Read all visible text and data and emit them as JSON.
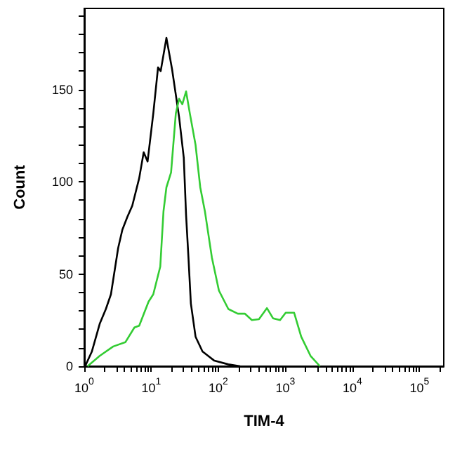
{
  "chart_data": {
    "type": "line",
    "xlabel": "TIM-4",
    "ylabel": "Count",
    "log": "x",
    "grid": false,
    "marker": "none",
    "line_style": "solid",
    "xlim": [
      1,
      230000
    ],
    "ylim": [
      0,
      194
    ],
    "xticks": [
      {
        "value": 1,
        "label": "10$^{0}$"
      },
      {
        "value": 2,
        "label": null
      },
      {
        "value": 3,
        "label": null
      },
      {
        "value": 4,
        "label": null
      },
      {
        "value": 5,
        "label": null
      },
      {
        "value": 6,
        "label": null
      },
      {
        "value": 7,
        "label": null
      },
      {
        "value": 8,
        "label": null
      },
      {
        "value": 9,
        "label": null
      },
      {
        "value": 10,
        "label": "10$^{1}$"
      },
      {
        "value": 20,
        "label": null
      },
      {
        "value": 30,
        "label": null
      },
      {
        "value": 40,
        "label": null
      },
      {
        "value": 50,
        "label": null
      },
      {
        "value": 60,
        "label": null
      },
      {
        "value": 70,
        "label": null
      },
      {
        "value": 80,
        "label": null
      },
      {
        "value": 90,
        "label": null
      },
      {
        "value": 100,
        "label": "10$^{2}$"
      },
      {
        "value": 200,
        "label": null
      },
      {
        "value": 300,
        "label": null
      },
      {
        "value": 400,
        "label": null
      },
      {
        "value": 500,
        "label": null
      },
      {
        "value": 600,
        "label": null
      },
      {
        "value": 700,
        "label": null
      },
      {
        "value": 800,
        "label": null
      },
      {
        "value": 900,
        "label": null
      },
      {
        "value": 1000,
        "label": "10$^{3}$"
      },
      {
        "value": 2000,
        "label": null
      },
      {
        "value": 3000,
        "label": null
      },
      {
        "value": 4000,
        "label": null
      },
      {
        "value": 5000,
        "label": null
      },
      {
        "value": 6000,
        "label": null
      },
      {
        "value": 7000,
        "label": null
      },
      {
        "value": 8000,
        "label": null
      },
      {
        "value": 9000,
        "label": null
      },
      {
        "value": 10000,
        "label": "10$^{4}$"
      },
      {
        "value": 20000,
        "label": null
      },
      {
        "value": 30000,
        "label": null
      },
      {
        "value": 40000,
        "label": null
      },
      {
        "value": 50000,
        "label": null
      },
      {
        "value": 60000,
        "label": null
      },
      {
        "value": 70000,
        "label": null
      },
      {
        "value": 80000,
        "label": null
      },
      {
        "value": 90000,
        "label": null
      },
      {
        "value": 100000,
        "label": "10$^{5}$"
      },
      {
        "value": 200000,
        "label": null
      }
    ],
    "yticks": [
      0,
      {
        "value": 10,
        "label": null
      },
      {
        "value": 20,
        "label": null
      },
      {
        "value": 30,
        "label": null
      },
      {
        "value": 40,
        "label": null
      },
      50,
      {
        "value": 60,
        "label": null
      },
      {
        "value": 70,
        "label": null
      },
      {
        "value": 80,
        "label": null
      },
      {
        "value": 90,
        "label": null
      },
      100,
      {
        "value": 110,
        "label": null
      },
      {
        "value": 120,
        "label": null
      },
      {
        "value": 130,
        "label": null
      },
      {
        "value": 140,
        "label": null
      },
      150,
      {
        "value": 160,
        "label": null
      },
      {
        "value": 170,
        "label": null
      },
      {
        "value": 180,
        "label": null
      },
      {
        "value": 190,
        "label": null
      }
    ],
    "series": [
      {
        "color": "#000000",
        "x": [
          1.03,
          1.3,
          1.7,
          2.1,
          2.5,
          3.2,
          3.7,
          4.4,
          5.2,
          6.6,
          7.7,
          8.8,
          10.7,
          12.6,
          13.8,
          16.8,
          20.4,
          26,
          30.5,
          33,
          35.8,
          38.9,
          45.7,
          58,
          87,
          141,
          211
        ],
        "values": [
          0,
          8,
          23,
          31,
          39,
          64,
          74,
          81,
          87,
          102,
          116,
          111,
          137,
          162,
          160,
          178,
          161,
          135,
          113,
          82,
          59,
          34,
          16,
          8,
          3,
          1,
          0
        ]
      },
      {
        "color": "#33cc33",
        "x": [
          1.12,
          1.7,
          2.7,
          4.1,
          5.6,
          6.6,
          9.1,
          10.7,
          13.6,
          15.2,
          16.8,
          19.7,
          23.2,
          26,
          29,
          33,
          37.6,
          45.7,
          53.7,
          63,
          80,
          102,
          141,
          195,
          248,
          316,
          403,
          530,
          653,
          832,
          1010,
          1350,
          1720,
          2370,
          3270
        ],
        "values": [
          0,
          5.6,
          10.7,
          13,
          21,
          22,
          35,
          39,
          54,
          84,
          97,
          105,
          137,
          145,
          142,
          149,
          137,
          120,
          97,
          84,
          59,
          41,
          31,
          28.5,
          28.5,
          25,
          25.5,
          31.5,
          26,
          25,
          29,
          29,
          16,
          5.6,
          0
        ]
      }
    ]
  }
}
